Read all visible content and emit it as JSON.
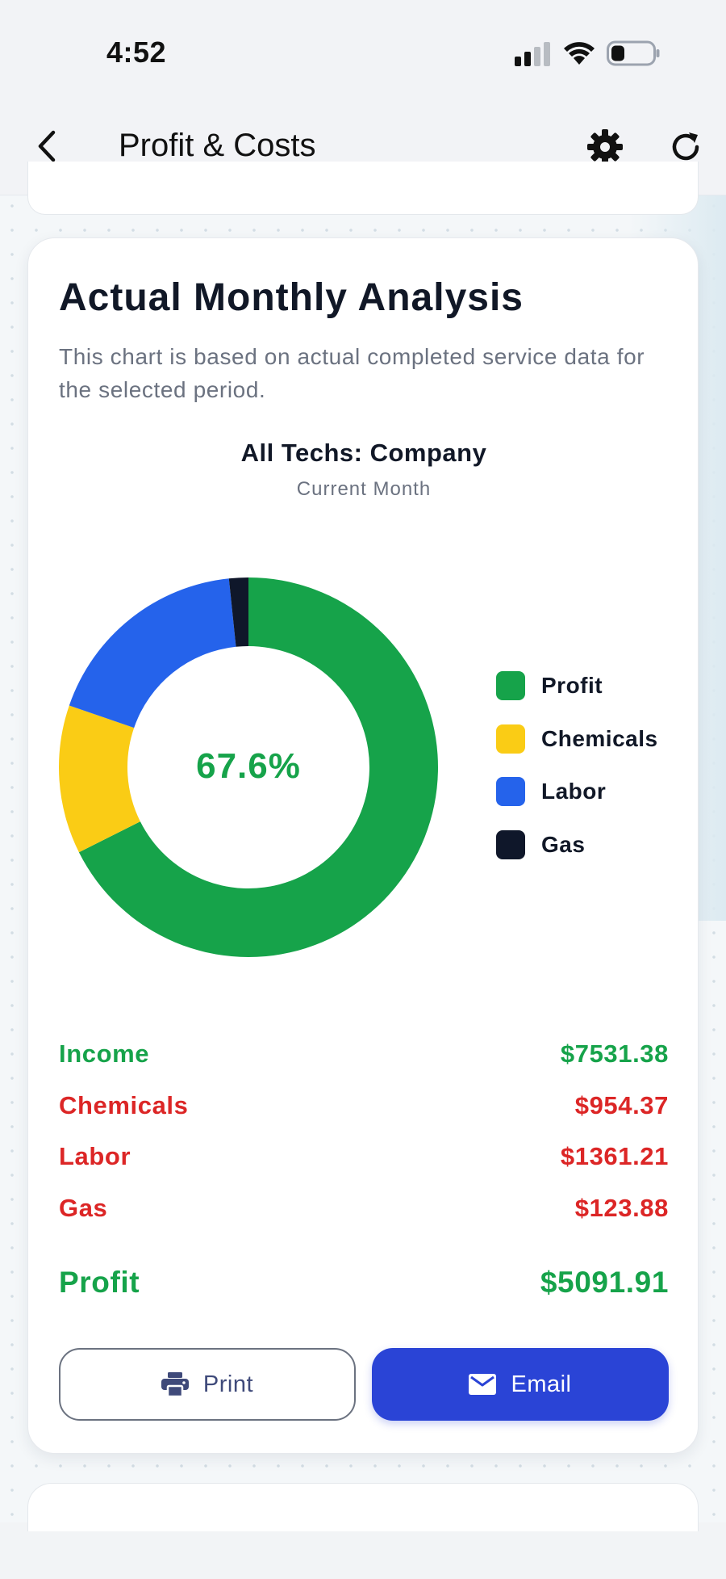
{
  "status_bar": {
    "time": "4:52"
  },
  "nav": {
    "title": "Profit & Costs"
  },
  "card": {
    "title": "Actual Monthly Analysis",
    "description": "This chart is based on actual completed service data for the selected period."
  },
  "chart_data": {
    "type": "pie",
    "title": "All Techs: Company",
    "subtitle": "Current Month",
    "center_label": "67.6%",
    "categories": [
      "Profit",
      "Chemicals",
      "Labor",
      "Gas"
    ],
    "values": [
      5091.91,
      954.37,
      1361.21,
      123.88
    ],
    "colors": [
      "#16a34a",
      "#facc15",
      "#2563eb",
      "#0f172a"
    ],
    "legend_placement": "right"
  },
  "summary": {
    "income_label": "Income",
    "income_value": "$7531.38",
    "chemicals_label": "Chemicals",
    "chemicals_value": "$954.37",
    "labor_label": "Labor",
    "labor_value": "$1361.21",
    "gas_label": "Gas",
    "gas_value": "$123.88",
    "profit_label": "Profit",
    "profit_value": "$5091.91"
  },
  "actions": {
    "print_label": "Print",
    "email_label": "Email"
  },
  "icons": {
    "back": "chevron-left-icon",
    "settings": "gear-icon",
    "refresh": "refresh-icon",
    "print": "printer-icon",
    "email": "envelope-icon"
  }
}
